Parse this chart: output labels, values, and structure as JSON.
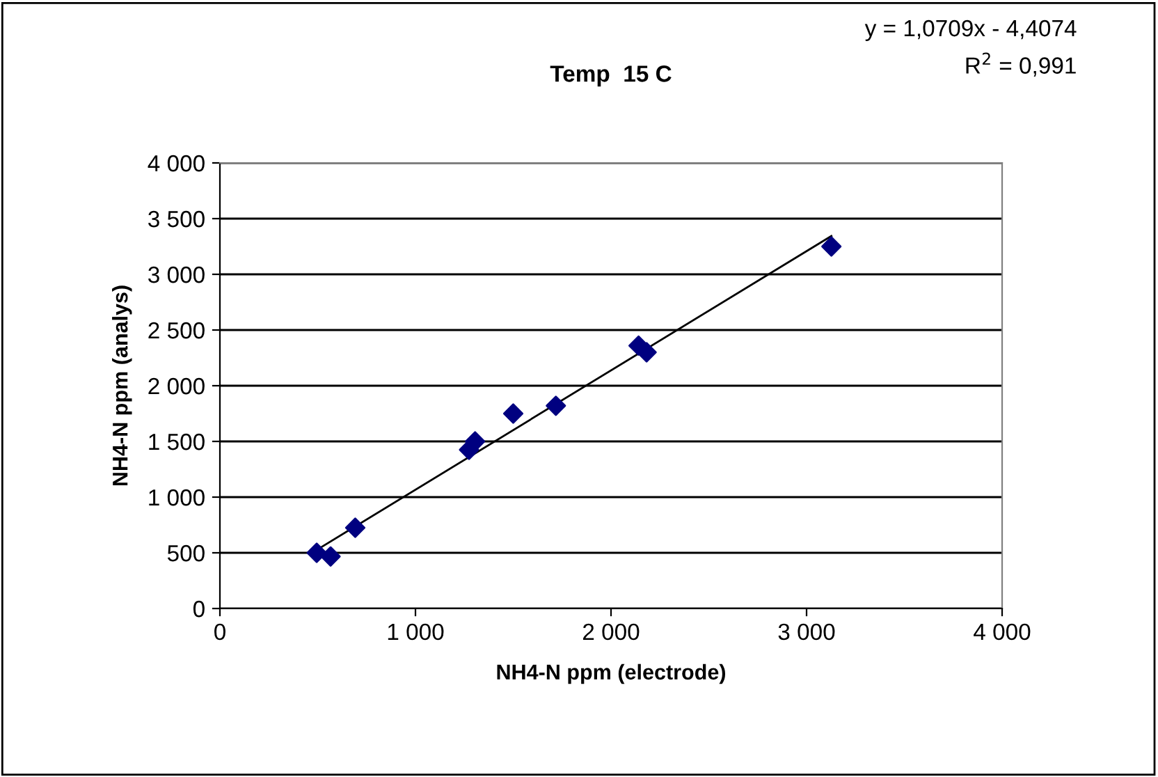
{
  "chart_data": {
    "type": "scatter",
    "title": "Temp  15 C",
    "xlabel": "NH4-N ppm (electrode)",
    "ylabel": "NH4-N ppm (analys)",
    "annotations": [
      "y = 1,0709x - 4,4074",
      "R$^{2}$ = 0,991"
    ],
    "x": [
      495,
      566,
      692,
      1274,
      1305,
      1500,
      1718,
      2141,
      2182,
      3127
    ],
    "series": [
      {
        "color": "#000080",
        "values": [
          500,
          467,
          725,
          1425,
          1500,
          1750,
          1820,
          2360,
          2300,
          3250
        ],
        "marker": "diamond"
      },
      {
        "type": "line",
        "color": "#000000",
        "x": [
          495,
          3127
        ],
        "values": [
          526,
          3344
        ],
        "marker": "none"
      }
    ],
    "xlim": [
      0,
      4000
    ],
    "ylim": [
      0,
      4000
    ],
    "xticks": [
      {
        "value": 0,
        "label": "0"
      },
      {
        "value": 1000,
        "label": "1 000"
      },
      {
        "value": 2000,
        "label": "2 000"
      },
      {
        "value": 3000,
        "label": "3 000"
      },
      {
        "value": 4000,
        "label": "4 000"
      }
    ],
    "yticks": [
      {
        "value": 0,
        "label": "0"
      },
      {
        "value": 500,
        "label": "500"
      },
      {
        "value": 1000,
        "label": "1 000"
      },
      {
        "value": 1500,
        "label": "1 500"
      },
      {
        "value": 2000,
        "label": "2 000"
      },
      {
        "value": 2500,
        "label": "2 500"
      },
      {
        "value": 3000,
        "label": "3 000"
      },
      {
        "value": 3500,
        "label": "3 500"
      },
      {
        "value": 4000,
        "label": "4 000"
      }
    ],
    "grid": "y",
    "legend": false
  }
}
